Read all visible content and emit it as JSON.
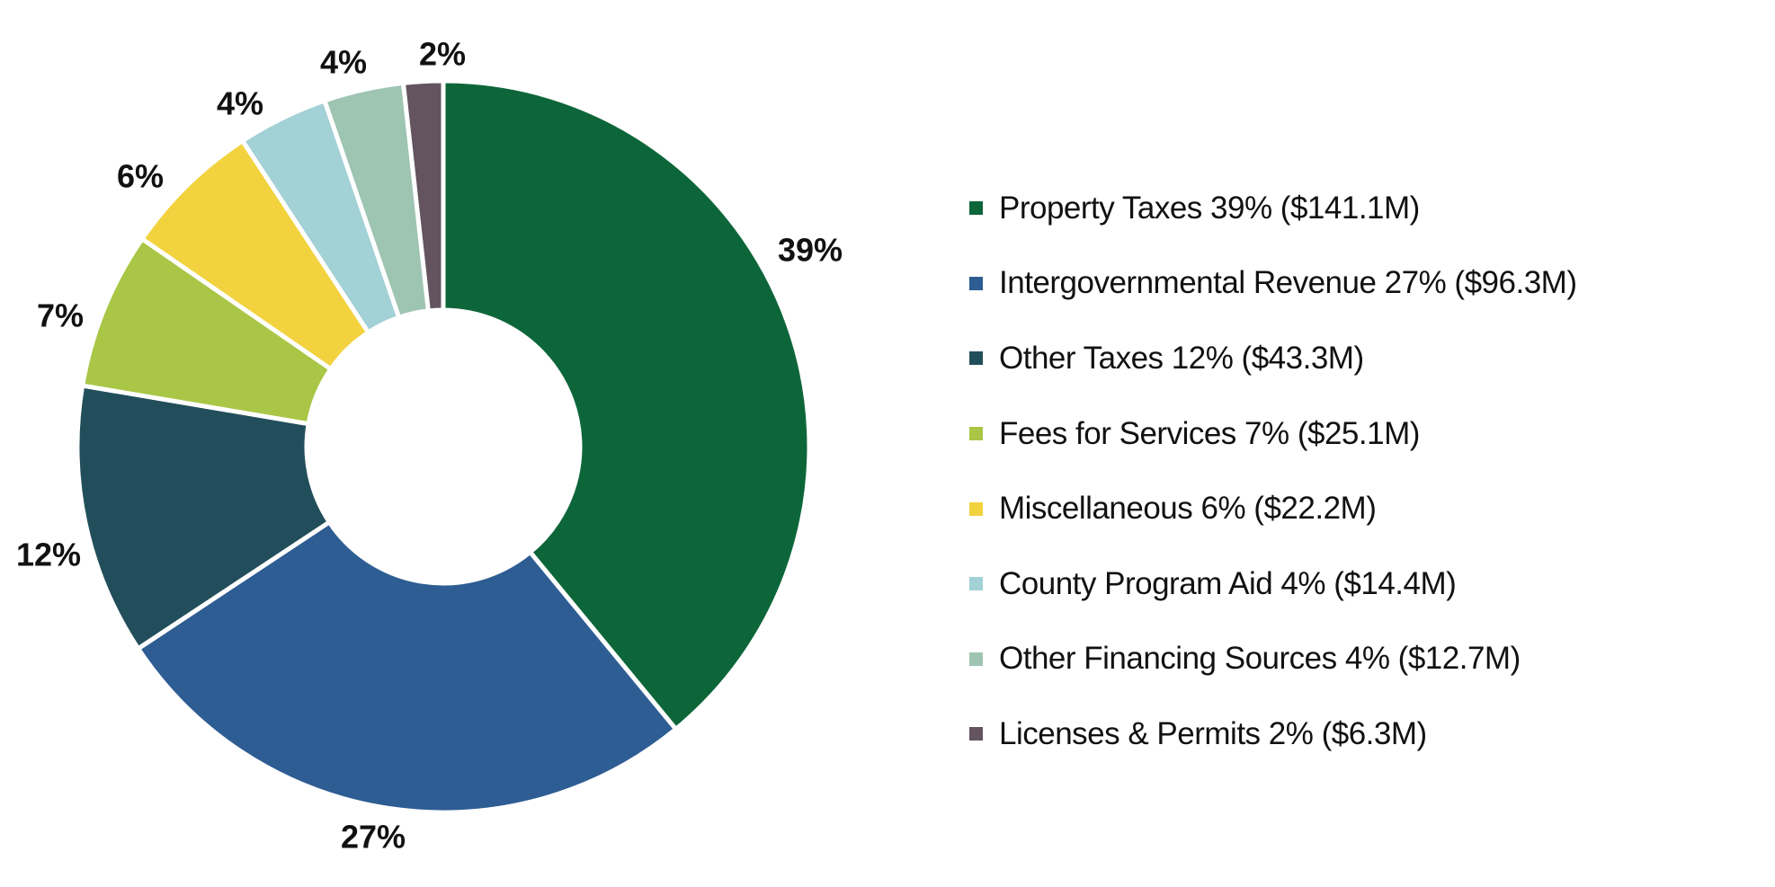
{
  "chart_data": {
    "type": "pie",
    "donut": true,
    "start": "top, clockwise",
    "legend_position": "right",
    "unit": "$M",
    "slices": [
      {
        "name": "Property Taxes",
        "legend": "Property Taxes 39% ($141.1M)",
        "label": "39%",
        "value": 141.1,
        "color": "#0d6639"
      },
      {
        "name": "Intergovernmental Revenue",
        "legend": "Intergovernmental Revenue 27% ($96.3M)",
        "label": "27%",
        "value": 96.3,
        "color": "#2e5d93"
      },
      {
        "name": "Other Taxes",
        "legend": "Other Taxes 12% ($43.3M)",
        "label": "12%",
        "value": 43.3,
        "color": "#224e5b"
      },
      {
        "name": "Fees for Services",
        "legend": "Fees for Services 7% ($25.1M)",
        "label": "7%",
        "value": 25.1,
        "color": "#a9c646"
      },
      {
        "name": "Miscellaneous",
        "legend": "Miscellaneous 6% ($22.2M)",
        "label": "6%",
        "value": 22.2,
        "color": "#f2d33f"
      },
      {
        "name": "County Program Aid",
        "legend": "County Program Aid 4% ($14.4M)",
        "label": "4%",
        "value": 14.4,
        "color": "#a2d1d6"
      },
      {
        "name": "Other Financing Sources",
        "legend": "Other Financing Sources 4% ($12.7M)",
        "label": "4%",
        "value": 12.7,
        "color": "#9ec4b2"
      },
      {
        "name": "Licenses & Permits",
        "legend": "Licenses & Permits 2% ($6.3M)",
        "label": "2%",
        "value": 6.3,
        "color": "#63545f"
      }
    ]
  }
}
